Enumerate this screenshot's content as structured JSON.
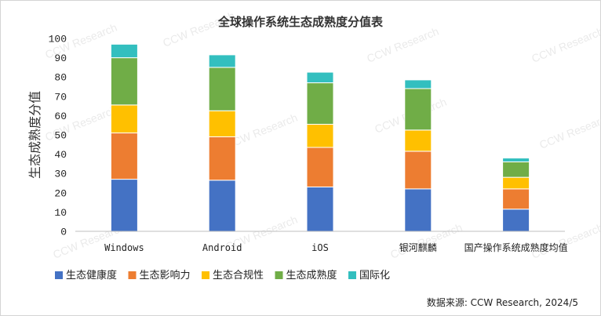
{
  "chart_data": {
    "type": "bar",
    "stacked": true,
    "title": "全球操作系统生态成熟度分值表",
    "ylabel": "生态成熟度分值",
    "xlabel": "",
    "ylim": [
      0,
      100
    ],
    "yticks": [
      0,
      10,
      20,
      30,
      40,
      50,
      60,
      70,
      80,
      90,
      100
    ],
    "categories": [
      "Windows",
      "Android",
      "iOS",
      "银河麒麟",
      "国产操作系统成熟度均值"
    ],
    "series": [
      {
        "name": "生态健康度",
        "color": "#4472C4",
        "values": [
          27,
          26.5,
          23,
          22,
          11.5
        ]
      },
      {
        "name": "生态影响力",
        "color": "#ED7D31",
        "values": [
          24,
          22.5,
          20.5,
          19.5,
          10.5
        ]
      },
      {
        "name": "生态合规性",
        "color": "#FFC000",
        "values": [
          14.5,
          13.5,
          12,
          11,
          6
        ]
      },
      {
        "name": "生态成熟度",
        "color": "#70AD47",
        "values": [
          24.5,
          22.5,
          21.5,
          21.5,
          8
        ]
      },
      {
        "name": "国际化",
        "color": "#33BFBF",
        "values": [
          7,
          6.5,
          5.5,
          4.5,
          2
        ]
      }
    ],
    "grid": false,
    "legend_position": "bottom-left"
  },
  "source_note": "数据来源: CCW Research, 2024/5",
  "watermark_text": "CCW Research"
}
